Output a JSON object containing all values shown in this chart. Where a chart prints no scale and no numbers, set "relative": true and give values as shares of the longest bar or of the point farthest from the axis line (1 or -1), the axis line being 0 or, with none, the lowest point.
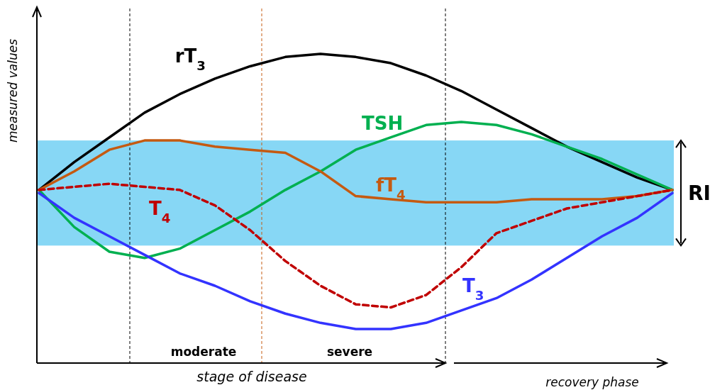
{
  "chart_data": {
    "type": "line",
    "relative": true,
    "xlabel": "stage of disease",
    "ylabel": "measured values",
    "marker": "none",
    "categories": [
      null,
      null,
      null,
      null,
      null,
      null,
      null,
      null,
      null,
      null,
      null,
      null,
      null,
      null,
      null,
      null,
      null,
      null,
      null
    ],
    "series": [
      {
        "name": "rT$_{3}$",
        "color": "#000000",
        "line_style": "solid",
        "values": [
          0.56,
          0.65,
          0.73,
          0.81,
          0.87,
          0.92,
          0.96,
          0.99,
          1.0,
          0.99,
          0.97,
          0.93,
          0.88,
          0.82,
          0.76,
          0.7,
          0.65,
          0.6,
          0.56
        ]
      },
      {
        "name": "TSH",
        "color": "#00b050",
        "line_style": "solid",
        "values": [
          0.56,
          0.44,
          0.36,
          0.34,
          0.37,
          0.43,
          0.49,
          0.56,
          0.62,
          0.69,
          0.73,
          0.77,
          0.78,
          0.77,
          0.74,
          0.7,
          0.66,
          0.61,
          0.56
        ]
      },
      {
        "name": "fT$_{4}$",
        "color": "#c55a11",
        "line_style": "solid",
        "values": [
          0.56,
          0.62,
          0.69,
          0.72,
          0.72,
          0.7,
          0.69,
          0.68,
          0.62,
          0.54,
          0.53,
          0.52,
          0.52,
          0.52,
          0.53,
          0.53,
          0.53,
          0.54,
          0.56
        ]
      },
      {
        "name": "T$_{4}$",
        "color": "#c00000",
        "line_style": "dashed",
        "values": [
          0.56,
          0.57,
          0.58,
          0.57,
          0.56,
          0.51,
          0.43,
          0.33,
          0.25,
          0.19,
          0.18,
          0.22,
          0.31,
          0.42,
          0.46,
          0.5,
          0.52,
          0.54,
          0.56
        ]
      },
      {
        "name": "T$_{3}$",
        "color": "#3333ff",
        "line_style": "solid",
        "values": [
          0.55,
          0.47,
          0.41,
          0.35,
          0.29,
          0.25,
          0.2,
          0.16,
          0.13,
          0.11,
          0.11,
          0.13,
          0.17,
          0.21,
          0.27,
          0.34,
          0.41,
          0.47,
          0.55
        ]
      }
    ],
    "bands": [
      {
        "axis": "y",
        "from": 0.38,
        "to": 0.72,
        "label": "RI",
        "color": "#87d7f5"
      }
    ],
    "annotations": [
      "moderate",
      "severe",
      "recovery phase"
    ]
  }
}
